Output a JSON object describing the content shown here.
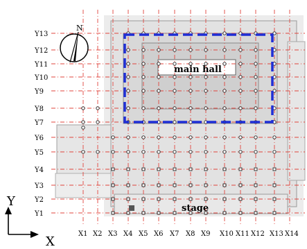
{
  "x_labels": [
    "X1",
    "X2",
    "X3",
    "X4",
    "X5",
    "X6",
    "X7",
    "X8",
    "X9",
    "X10",
    "X11",
    "X12",
    "X13",
    "X14"
  ],
  "y_labels": [
    "Y1",
    "Y2",
    "Y3",
    "Y4",
    "Y5",
    "Y6",
    "Y7",
    "Y8",
    "Y9",
    "Y10",
    "Y11",
    "Y12",
    "Y13"
  ],
  "regions": {
    "main_hall": "main hall",
    "stage": "stage"
  },
  "compass": {
    "north": "N"
  },
  "axes": {
    "x": "X",
    "y": "Y"
  },
  "colors": {
    "grid": "#e0443c",
    "main_hall_box": "#1f2fd6",
    "plan_fill": "#dcdcdc",
    "plan_line": "#9a9a9a",
    "node": "#222222"
  }
}
